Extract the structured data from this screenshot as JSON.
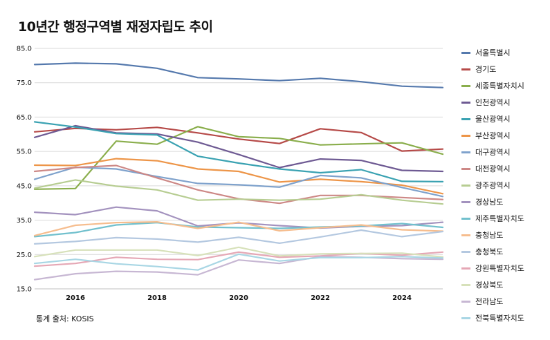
{
  "chart_data": {
    "type": "line",
    "title": "10년간 행정구역별 재정자립도 추이",
    "source": "통계 출처: KOSIS",
    "xlabel": "",
    "ylabel": "",
    "xlim": [
      2015,
      2025
    ],
    "ylim": [
      15,
      85
    ],
    "x_ticks": [
      2016,
      2018,
      2020,
      2022,
      2024
    ],
    "y_ticks": [
      "85.0",
      "75.0",
      "65.0",
      "55.0",
      "45.0",
      "35.0",
      "25.0",
      "15.0"
    ],
    "x": [
      2015,
      2016,
      2017,
      2018,
      2019,
      2020,
      2021,
      2022,
      2023,
      2024,
      2025
    ],
    "legend_position": "right",
    "series": [
      {
        "name": "서울특별시",
        "color": "#5579ad",
        "values": [
          80.3,
          80.7,
          80.5,
          79.2,
          76.5,
          76.1,
          75.6,
          76.3,
          75.3,
          74.0,
          73.6
        ]
      },
      {
        "name": "경기도",
        "color": "#b64a48",
        "values": [
          60.7,
          61.7,
          61.3,
          62.0,
          60.4,
          58.6,
          57.3,
          61.6,
          60.5,
          55.1,
          55.7
        ]
      },
      {
        "name": "세종특별자치시",
        "color": "#8aae4c",
        "values": [
          44.0,
          44.2,
          58.0,
          57.1,
          62.2,
          59.3,
          58.8,
          56.9,
          57.2,
          57.5,
          54.2
        ]
      },
      {
        "name": "인천광역시",
        "color": "#6e5a93",
        "values": [
          59.1,
          62.5,
          60.4,
          60.1,
          57.7,
          54.1,
          50.3,
          52.8,
          52.4,
          49.5,
          49.2
        ]
      },
      {
        "name": "울산광역시",
        "color": "#3aa2b2",
        "values": [
          63.6,
          62.1,
          60.2,
          59.8,
          53.6,
          51.6,
          49.9,
          48.8,
          49.7,
          46.3,
          46.2
        ]
      },
      {
        "name": "부산광역시",
        "color": "#ed9548",
        "values": [
          51.0,
          50.9,
          52.9,
          52.3,
          49.9,
          49.2,
          46.1,
          46.9,
          46.2,
          45.2,
          42.7
        ]
      },
      {
        "name": "대구광역시",
        "color": "#7fa2cc",
        "values": [
          46.9,
          50.4,
          49.9,
          47.7,
          45.7,
          45.3,
          44.6,
          48.0,
          47.3,
          44.5,
          41.9
        ]
      },
      {
        "name": "대전광역시",
        "color": "#cd8886",
        "values": [
          49.2,
          50.3,
          50.9,
          47.3,
          43.8,
          41.2,
          39.9,
          42.2,
          42.2,
          41.6,
          41.0
        ]
      },
      {
        "name": "광주광역시",
        "color": "#b7cd92",
        "values": [
          44.3,
          46.7,
          44.9,
          43.8,
          40.8,
          41.1,
          40.8,
          41.1,
          42.4,
          40.8,
          39.7
        ]
      },
      {
        "name": "경상남도",
        "color": "#a392be",
        "values": [
          37.3,
          36.6,
          38.8,
          37.7,
          33.3,
          34.2,
          33.4,
          32.7,
          33.2,
          33.4,
          34.4
        ]
      },
      {
        "name": "제주특별자치도",
        "color": "#71c0cd",
        "values": [
          30.2,
          31.4,
          33.6,
          34.3,
          33.0,
          32.8,
          32.6,
          33.0,
          33.3,
          34.0,
          32.9
        ]
      },
      {
        "name": "충청남도",
        "color": "#f6bd8e",
        "values": [
          30.5,
          33.5,
          34.3,
          34.5,
          32.6,
          34.4,
          31.9,
          32.8,
          33.6,
          32.2,
          31.8
        ]
      },
      {
        "name": "충청북도",
        "color": "#b4c8e0",
        "values": [
          28.1,
          28.8,
          29.9,
          29.5,
          28.6,
          30.0,
          28.3,
          30.1,
          32.1,
          30.2,
          31.7
        ]
      },
      {
        "name": "강원특별자치도",
        "color": "#e5a7b5",
        "values": [
          21.6,
          22.4,
          24.2,
          23.6,
          23.5,
          25.7,
          24.2,
          24.6,
          25.3,
          24.8,
          25.7
        ]
      },
      {
        "name": "경상북도",
        "color": "#d7e1ba",
        "values": [
          24.4,
          26.3,
          26.3,
          26.3,
          24.7,
          27.1,
          24.6,
          25.2,
          25.3,
          25.4,
          24.3
        ]
      },
      {
        "name": "전라남도",
        "color": "#c7b7d3",
        "values": [
          17.7,
          19.4,
          20.1,
          19.9,
          19.1,
          23.4,
          22.4,
          24.4,
          24.2,
          23.8,
          23.6
        ]
      },
      {
        "name": "전북특별자치도",
        "color": "#a8d6e4",
        "values": [
          22.4,
          23.6,
          22.3,
          21.5,
          20.5,
          25.1,
          23.1,
          24.1,
          24.1,
          24.4,
          24.0
        ]
      }
    ]
  }
}
